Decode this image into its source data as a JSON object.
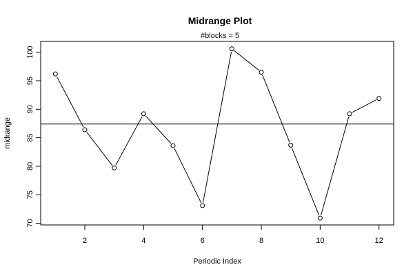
{
  "chart_data": {
    "type": "line",
    "title": "Midrange Plot",
    "subtitle": "#blocks =  5",
    "xlabel": "Periodic Index",
    "ylabel": "midrange",
    "x": [
      1,
      2,
      3,
      4,
      5,
      6,
      7,
      8,
      9,
      10,
      11,
      12
    ],
    "values": [
      96.2,
      86.4,
      79.7,
      89.2,
      83.6,
      73.1,
      100.6,
      96.5,
      83.7,
      70.9,
      89.2,
      91.9
    ],
    "xlim": [
      0.5,
      12.5
    ],
    "ylim": [
      69.7,
      101.9
    ],
    "xticks": [
      2,
      4,
      6,
      8,
      10,
      12
    ],
    "yticks": [
      70,
      75,
      80,
      85,
      90,
      95,
      100
    ],
    "xtick_labels": [
      "2",
      "4",
      "6",
      "8",
      "10",
      "12"
    ],
    "ytick_labels": [
      "70",
      "75",
      "80",
      "85",
      "90",
      "95",
      "100"
    ],
    "reference_line": 87.4,
    "grid": false,
    "marker": "open-circle",
    "line_color": "#000000"
  }
}
